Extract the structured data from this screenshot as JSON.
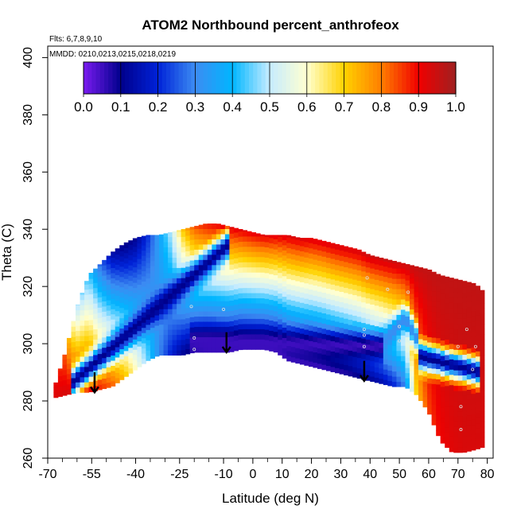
{
  "chart_data": {
    "type": "heatmap",
    "title": "ATOM2 Northbound percent_anthrofeox",
    "annotations": {
      "flights": "Flts: 6,7,8,9,10",
      "dates": "MMDD: 0210,0213,0215,0218,0219"
    },
    "xlabel": "Latitude (deg N)",
    "ylabel": "Theta (C)",
    "xlim": [
      -70,
      82
    ],
    "ylim": [
      260,
      404
    ],
    "x_ticks": [
      -70,
      -55,
      -40,
      -25,
      -10,
      0,
      10,
      20,
      30,
      40,
      50,
      60,
      70,
      80
    ],
    "x_tick_labels": [
      "-70",
      "-55",
      "-40",
      "-25",
      "-10",
      "0",
      "10",
      "20",
      "30",
      "40",
      "50",
      "60",
      "70",
      "80"
    ],
    "x_minor_ticks": [
      -65,
      -60,
      -50,
      -45,
      -35,
      -30,
      -20,
      -15,
      -5,
      5,
      15,
      25,
      35,
      45,
      55,
      65,
      75
    ],
    "y_ticks": [
      260,
      280,
      300,
      320,
      340,
      360,
      380,
      400
    ],
    "y_tick_labels": [
      "260",
      "280",
      "300",
      "320",
      "340",
      "360",
      "380",
      "400"
    ],
    "colorbar": {
      "min": 0.0,
      "max": 1.0,
      "tick_labels": [
        "0.0",
        "0.1",
        "0.2",
        "0.3",
        "0.4",
        "0.5",
        "0.6",
        "0.7",
        "0.8",
        "0.9",
        "1.0"
      ],
      "colors": [
        "#7a1cf0",
        "#00008c",
        "#0022d8",
        "#3c8cf2",
        "#00b6ff",
        "#c6ecff",
        "#ffffd0",
        "#ffd200",
        "#ff7e00",
        "#f00000",
        "#a02020"
      ]
    },
    "field_profiles": [
      {
        "lat": -68,
        "theta_bottom": 281,
        "theta_top": 284,
        "v_bottom": 0.92,
        "v_top": 0.93
      },
      {
        "lat": -64,
        "theta_bottom": 282,
        "theta_top": 297,
        "v_bottom": 0.93,
        "v_top": 0.82
      },
      {
        "lat": -60,
        "theta_bottom": 283,
        "theta_top": 313,
        "v_bottom": 0.93,
        "v_top": 0.48
      },
      {
        "lat": -56,
        "theta_bottom": 283,
        "theta_top": 324,
        "v_bottom": 0.92,
        "v_top": 0.42
      },
      {
        "lat": -52,
        "theta_bottom": 284,
        "theta_top": 328,
        "v_bottom": 0.86,
        "v_top": 0.25
      },
      {
        "lat": -48,
        "theta_bottom": 285,
        "theta_top": 332,
        "v_bottom": 0.82,
        "v_top": 0.12
      },
      {
        "lat": -44,
        "theta_bottom": 288,
        "theta_top": 335,
        "v_bottom": 0.72,
        "v_top": 0.08
      },
      {
        "lat": -40,
        "theta_bottom": 291,
        "theta_top": 337,
        "v_bottom": 0.6,
        "v_top": 0.1
      },
      {
        "lat": -36,
        "theta_bottom": 294,
        "theta_top": 338,
        "v_bottom": 0.45,
        "v_top": 0.2
      },
      {
        "lat": -32,
        "theta_bottom": 296,
        "theta_top": 338,
        "v_bottom": 0.3,
        "v_top": 0.35
      },
      {
        "lat": -28,
        "theta_bottom": 296,
        "theta_top": 339,
        "v_bottom": 0.2,
        "v_top": 0.5
      },
      {
        "lat": -24,
        "theta_bottom": 296,
        "theta_top": 340,
        "v_bottom": 0.12,
        "v_top": 0.72
      },
      {
        "lat": -20,
        "theta_bottom": 297,
        "theta_top": 341,
        "v_bottom": 0.08,
        "v_top": 0.85
      },
      {
        "lat": -16,
        "theta_bottom": 297,
        "theta_top": 342,
        "v_bottom": 0.06,
        "v_top": 0.9
      },
      {
        "lat": -12,
        "theta_bottom": 297,
        "theta_top": 342,
        "v_bottom": 0.06,
        "v_top": 0.92
      },
      {
        "lat": -8,
        "theta_bottom": 297,
        "theta_top": 341,
        "v_bottom": 0.06,
        "v_top": 0.93
      },
      {
        "lat": -4,
        "theta_bottom": 298,
        "theta_top": 340,
        "v_bottom": 0.06,
        "v_top": 0.93
      },
      {
        "lat": 0,
        "theta_bottom": 298,
        "theta_top": 339,
        "v_bottom": 0.06,
        "v_top": 0.93
      },
      {
        "lat": 4,
        "theta_bottom": 298,
        "theta_top": 338,
        "v_bottom": 0.06,
        "v_top": 0.93
      },
      {
        "lat": 8,
        "theta_bottom": 297,
        "theta_top": 338,
        "v_bottom": 0.06,
        "v_top": 0.93
      },
      {
        "lat": 12,
        "theta_bottom": 294,
        "theta_top": 338,
        "v_bottom": 0.06,
        "v_top": 0.94
      },
      {
        "lat": 16,
        "theta_bottom": 293,
        "theta_top": 337,
        "v_bottom": 0.06,
        "v_top": 0.94
      },
      {
        "lat": 20,
        "theta_bottom": 292,
        "theta_top": 337,
        "v_bottom": 0.06,
        "v_top": 0.94
      },
      {
        "lat": 24,
        "theta_bottom": 291,
        "theta_top": 336,
        "v_bottom": 0.06,
        "v_top": 0.94
      },
      {
        "lat": 28,
        "theta_bottom": 290,
        "theta_top": 335,
        "v_bottom": 0.07,
        "v_top": 0.95
      },
      {
        "lat": 32,
        "theta_bottom": 289,
        "theta_top": 334,
        "v_bottom": 0.08,
        "v_top": 0.95
      },
      {
        "lat": 36,
        "theta_bottom": 288,
        "theta_top": 333,
        "v_bottom": 0.1,
        "v_top": 0.95
      },
      {
        "lat": 40,
        "theta_bottom": 287,
        "theta_top": 331,
        "v_bottom": 0.12,
        "v_top": 0.96
      },
      {
        "lat": 44,
        "theta_bottom": 286,
        "theta_top": 330,
        "v_bottom": 0.15,
        "v_top": 0.96
      },
      {
        "lat": 48,
        "theta_bottom": 285,
        "theta_top": 329,
        "v_bottom": 0.2,
        "v_top": 0.96
      },
      {
        "lat": 52,
        "theta_bottom": 285,
        "theta_top": 328,
        "v_bottom": 0.3,
        "v_top": 0.96
      },
      {
        "lat": 56,
        "theta_bottom": 282,
        "theta_top": 327,
        "v_bottom": 0.72,
        "v_top": 0.96
      },
      {
        "lat": 60,
        "theta_bottom": 276,
        "theta_top": 326,
        "v_bottom": 0.85,
        "v_top": 0.96
      },
      {
        "lat": 64,
        "theta_bottom": 266,
        "theta_top": 324,
        "v_bottom": 0.9,
        "v_top": 0.96
      },
      {
        "lat": 68,
        "theta_bottom": 262,
        "theta_top": 323,
        "v_bottom": 0.92,
        "v_top": 0.96
      },
      {
        "lat": 72,
        "theta_bottom": 262,
        "theta_top": 322,
        "v_bottom": 0.93,
        "v_top": 0.96
      },
      {
        "lat": 76,
        "theta_bottom": 263,
        "theta_top": 321,
        "v_bottom": 0.93,
        "v_top": 0.96
      },
      {
        "lat": 79,
        "theta_bottom": 264,
        "theta_top": 318,
        "v_bottom": 0.93,
        "v_top": 0.96
      }
    ],
    "low_value_bands": [
      {
        "lat_start": -62,
        "lat_end": -8,
        "theta_start": 286,
        "theta_end": 335,
        "value": 0.1
      },
      {
        "lat_start": -22,
        "lat_end": 45,
        "theta_start": 301,
        "theta_end": 299,
        "value": 0.05
      },
      {
        "lat_start": 45,
        "lat_end": 52,
        "theta_start": 301,
        "theta_end": 309,
        "value": 0.3
      },
      {
        "lat_start": 52,
        "lat_end": 57,
        "theta_start": 309,
        "theta_end": 300,
        "value": 0.3
      },
      {
        "lat_start": 56,
        "lat_end": 78,
        "theta_start": 296,
        "theta_end": 290,
        "value": 0.1
      }
    ],
    "sample_points": [
      {
        "lat": -21,
        "theta": 313
      },
      {
        "lat": -20,
        "theta": 302
      },
      {
        "lat": -20,
        "theta": 298
      },
      {
        "lat": -10,
        "theta": 312
      },
      {
        "lat": 38,
        "theta": 305
      },
      {
        "lat": 38,
        "theta": 303
      },
      {
        "lat": 38,
        "theta": 299
      },
      {
        "lat": 39,
        "theta": 323
      },
      {
        "lat": 46,
        "theta": 319
      },
      {
        "lat": 50,
        "theta": 306
      },
      {
        "lat": 50,
        "theta": 301
      },
      {
        "lat": 53,
        "theta": 318
      },
      {
        "lat": 70,
        "theta": 299
      },
      {
        "lat": 71,
        "theta": 278
      },
      {
        "lat": 71,
        "theta": 270
      },
      {
        "lat": 73,
        "theta": 305
      },
      {
        "lat": 75,
        "theta": 291
      },
      {
        "lat": 76,
        "theta": 299
      }
    ],
    "arrows": [
      {
        "lat": -54,
        "theta_from": 290,
        "theta_to": 283
      },
      {
        "lat": -9,
        "theta_from": 304,
        "theta_to": 297
      },
      {
        "lat": 38,
        "theta_from": 294,
        "theta_to": 287
      }
    ]
  }
}
